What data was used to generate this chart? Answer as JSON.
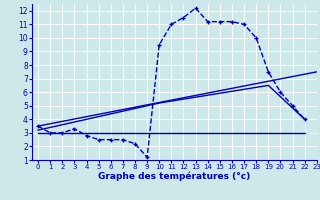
{
  "bg_color": "#cce8e8",
  "grid_color": "#ffffff",
  "line_color": "#0000bb",
  "xlabel": "Graphe des températures (°c)",
  "xlim": [
    -0.5,
    23
  ],
  "ylim": [
    1,
    12.5
  ],
  "yticks": [
    1,
    2,
    3,
    4,
    5,
    6,
    7,
    8,
    9,
    10,
    11,
    12
  ],
  "xticks": [
    0,
    1,
    2,
    3,
    4,
    5,
    6,
    7,
    8,
    9,
    10,
    11,
    12,
    13,
    14,
    15,
    16,
    17,
    18,
    19,
    20,
    21,
    22,
    23
  ],
  "curve_x": [
    0,
    1,
    2,
    3,
    4,
    5,
    6,
    7,
    8,
    9,
    10,
    11,
    12,
    13,
    14,
    15,
    16,
    17,
    18,
    19,
    20,
    21,
    22
  ],
  "curve_y": [
    3.5,
    3.0,
    3.0,
    3.3,
    2.8,
    2.5,
    2.5,
    2.5,
    2.2,
    1.2,
    9.5,
    11.0,
    11.5,
    12.2,
    11.2,
    11.2,
    11.2,
    11.0,
    10.0,
    7.5,
    6.0,
    5.0,
    4.0
  ],
  "line1_x": [
    0,
    23
  ],
  "line1_y": [
    3.5,
    7.5
  ],
  "line2_x": [
    0,
    22
  ],
  "line2_y": [
    3.0,
    3.0
  ],
  "line3_x": [
    0,
    10,
    19,
    22
  ],
  "line3_y": [
    3.2,
    5.2,
    6.5,
    4.0
  ]
}
